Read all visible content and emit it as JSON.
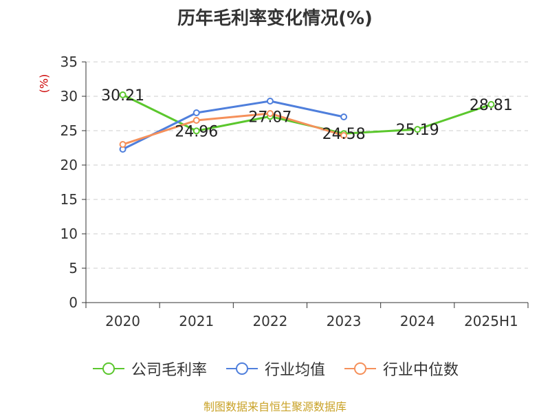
{
  "chart_data": {
    "type": "line",
    "title": "历年毛利率变化情况(%)",
    "ylabel": "(%)",
    "categories": [
      "2020",
      "2021",
      "2022",
      "2023",
      "2024",
      "2025H1"
    ],
    "ylim": [
      0,
      35
    ],
    "yticks": [
      0,
      5,
      10,
      15,
      20,
      25,
      30,
      35
    ],
    "grid": true,
    "legend_position": "bottom",
    "series": [
      {
        "name": "公司毛利率",
        "color": "#5bc72d",
        "values": [
          30.21,
          24.96,
          27.07,
          24.58,
          25.19,
          28.81
        ],
        "labels": [
          "30.21",
          "24.96",
          "27.07",
          "24.58",
          "25.19",
          "28.81"
        ]
      },
      {
        "name": "行业均值",
        "color": "#4f7fdc",
        "values": [
          22.3,
          27.6,
          29.3,
          27.0,
          null,
          null
        ]
      },
      {
        "name": "行业中位数",
        "color": "#f5905a",
        "values": [
          23.0,
          26.5,
          27.5,
          24.3,
          null,
          null
        ]
      }
    ]
  },
  "source": "制图数据来自恒生聚源数据库"
}
